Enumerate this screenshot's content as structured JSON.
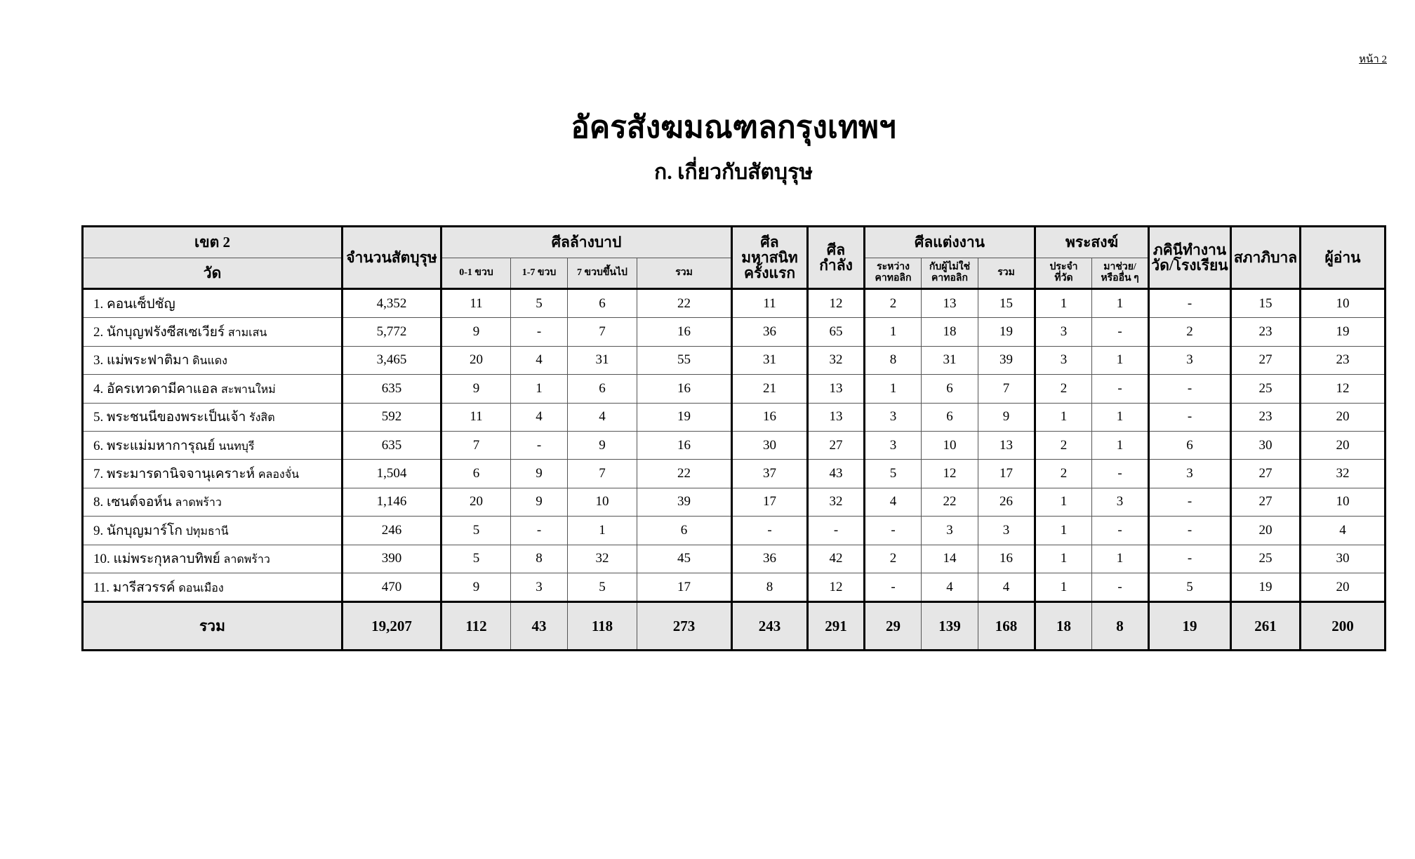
{
  "header": {
    "page": "หน้า 2",
    "title": "อัครสังฆมณฑลกรุงเทพฯ",
    "subtitle": "ก. เกี่ยวกับสัตบุรุษ"
  },
  "table": {
    "head_top": [
      {
        "lines": [
          "เขต 2"
        ]
      },
      {
        "lines": [
          "จำนวนสัตบุรุษ"
        ],
        "rowspan": 2
      },
      {
        "lines": [
          "ศีลล้างบาป"
        ],
        "colspan": 4
      },
      {
        "lines": [
          "ศีล",
          "มหาสนิท",
          "ครั้งแรก"
        ],
        "rowspan": 2
      },
      {
        "lines": [
          "ศีล",
          "กำลัง"
        ],
        "rowspan": 2
      },
      {
        "lines": [
          "ศีลแต่งงาน"
        ],
        "colspan": 3
      },
      {
        "lines": [
          "พระสงฆ์"
        ],
        "colspan": 2
      },
      {
        "lines": [
          "ภคินีทำงาน",
          "วัด/โรงเรียน"
        ],
        "rowspan": 2
      },
      {
        "lines": [
          "สภาภิบาล"
        ],
        "rowspan": 2
      },
      {
        "lines": [
          "ผู้อ่าน"
        ],
        "rowspan": 2
      }
    ],
    "head_sub": [
      {
        "lines": [
          "วัด"
        ]
      },
      {
        "lines": [
          "0-1 ขวบ"
        ]
      },
      {
        "lines": [
          "1-7 ขวบ"
        ]
      },
      {
        "lines": [
          "7 ขวบขึ้นไป"
        ]
      },
      {
        "lines": [
          "รวม"
        ]
      },
      {
        "lines": [
          "ระหว่าง",
          "คาทอลิก"
        ]
      },
      {
        "lines": [
          "กับผู้ไม่ใช่",
          "คาทอลิก"
        ]
      },
      {
        "lines": [
          "รวม"
        ]
      },
      {
        "lines": [
          "ประจำ",
          "ที่วัด"
        ]
      },
      {
        "lines": [
          "มาช่วย/",
          "หรืออื่น ๆ"
        ]
      }
    ],
    "rows": [
      {
        "no": "1.",
        "name": "คอนเซ็ปชัญ",
        "cells": [
          "4,352",
          "11",
          "5",
          "6",
          "22",
          "11",
          "12",
          "2",
          "13",
          "15",
          "1",
          "1",
          "-",
          "15",
          "10"
        ]
      },
      {
        "no": "2.",
        "name": "นักบุญฟรังซีสเซเวียร์",
        "place": "สามเสน",
        "cells": [
          "5,772",
          "9",
          "-",
          "7",
          "16",
          "36",
          "65",
          "1",
          "18",
          "19",
          "3",
          "-",
          "2",
          "23",
          "19"
        ]
      },
      {
        "no": "3.",
        "name": "แม่พระฟาติมา",
        "place": "ดินแดง",
        "cells": [
          "3,465",
          "20",
          "4",
          "31",
          "55",
          "31",
          "32",
          "8",
          "31",
          "39",
          "3",
          "1",
          "3",
          "27",
          "23"
        ]
      },
      {
        "no": "4.",
        "name": "อัครเทวดามีคาแอล",
        "place": "สะพานใหม่",
        "cells": [
          "635",
          "9",
          "1",
          "6",
          "16",
          "21",
          "13",
          "1",
          "6",
          "7",
          "2",
          "-",
          "-",
          "25",
          "12"
        ]
      },
      {
        "no": "5.",
        "name": "พระชนนีของพระเป็นเจ้า",
        "place": "รังสิต",
        "cells": [
          "592",
          "11",
          "4",
          "4",
          "19",
          "16",
          "13",
          "3",
          "6",
          "9",
          "1",
          "1",
          "-",
          "23",
          "20"
        ]
      },
      {
        "no": "6.",
        "name": "พระแม่มหาการุณย์",
        "place": "นนทบุรี",
        "cells": [
          "635",
          "7",
          "-",
          "9",
          "16",
          "30",
          "27",
          "3",
          "10",
          "13",
          "2",
          "1",
          "6",
          "30",
          "20"
        ]
      },
      {
        "no": "7.",
        "name": "พระมารดานิจจานุเคราะห์",
        "place": "คลองจั่น",
        "cells": [
          "1,504",
          "6",
          "9",
          "7",
          "22",
          "37",
          "43",
          "5",
          "12",
          "17",
          "2",
          "-",
          "3",
          "27",
          "32"
        ]
      },
      {
        "no": "8.",
        "name": "เซนต์จอห์น",
        "place": "ลาดพร้าว",
        "cells": [
          "1,146",
          "20",
          "9",
          "10",
          "39",
          "17",
          "32",
          "4",
          "22",
          "26",
          "1",
          "3",
          "-",
          "27",
          "10"
        ]
      },
      {
        "no": "9.",
        "name": "นักบุญมาร์โก",
        "place": "ปทุมธานี",
        "cells": [
          "246",
          "5",
          "-",
          "1",
          "6",
          "-",
          "-",
          "-",
          "3",
          "3",
          "1",
          "-",
          "-",
          "20",
          "4"
        ]
      },
      {
        "no": "10.",
        "name": "แม่พระกุหลาบทิพย์",
        "place": "ลาดพร้าว",
        "cells": [
          "390",
          "5",
          "8",
          "32",
          "45",
          "36",
          "42",
          "2",
          "14",
          "16",
          "1",
          "1",
          "-",
          "25",
          "30"
        ]
      },
      {
        "no": "11.",
        "name": "มารีสวรรค์",
        "place": "ดอนเมือง",
        "cells": [
          "470",
          "9",
          "3",
          "5",
          "17",
          "8",
          "12",
          "-",
          "4",
          "4",
          "1",
          "-",
          "5",
          "19",
          "20"
        ]
      }
    ],
    "total": {
      "label": "รวม",
      "cells": [
        "19,207",
        "112",
        "43",
        "118",
        "273",
        "243",
        "291",
        "29",
        "139",
        "168",
        "18",
        "8",
        "19",
        "261",
        "200"
      ]
    }
  }
}
